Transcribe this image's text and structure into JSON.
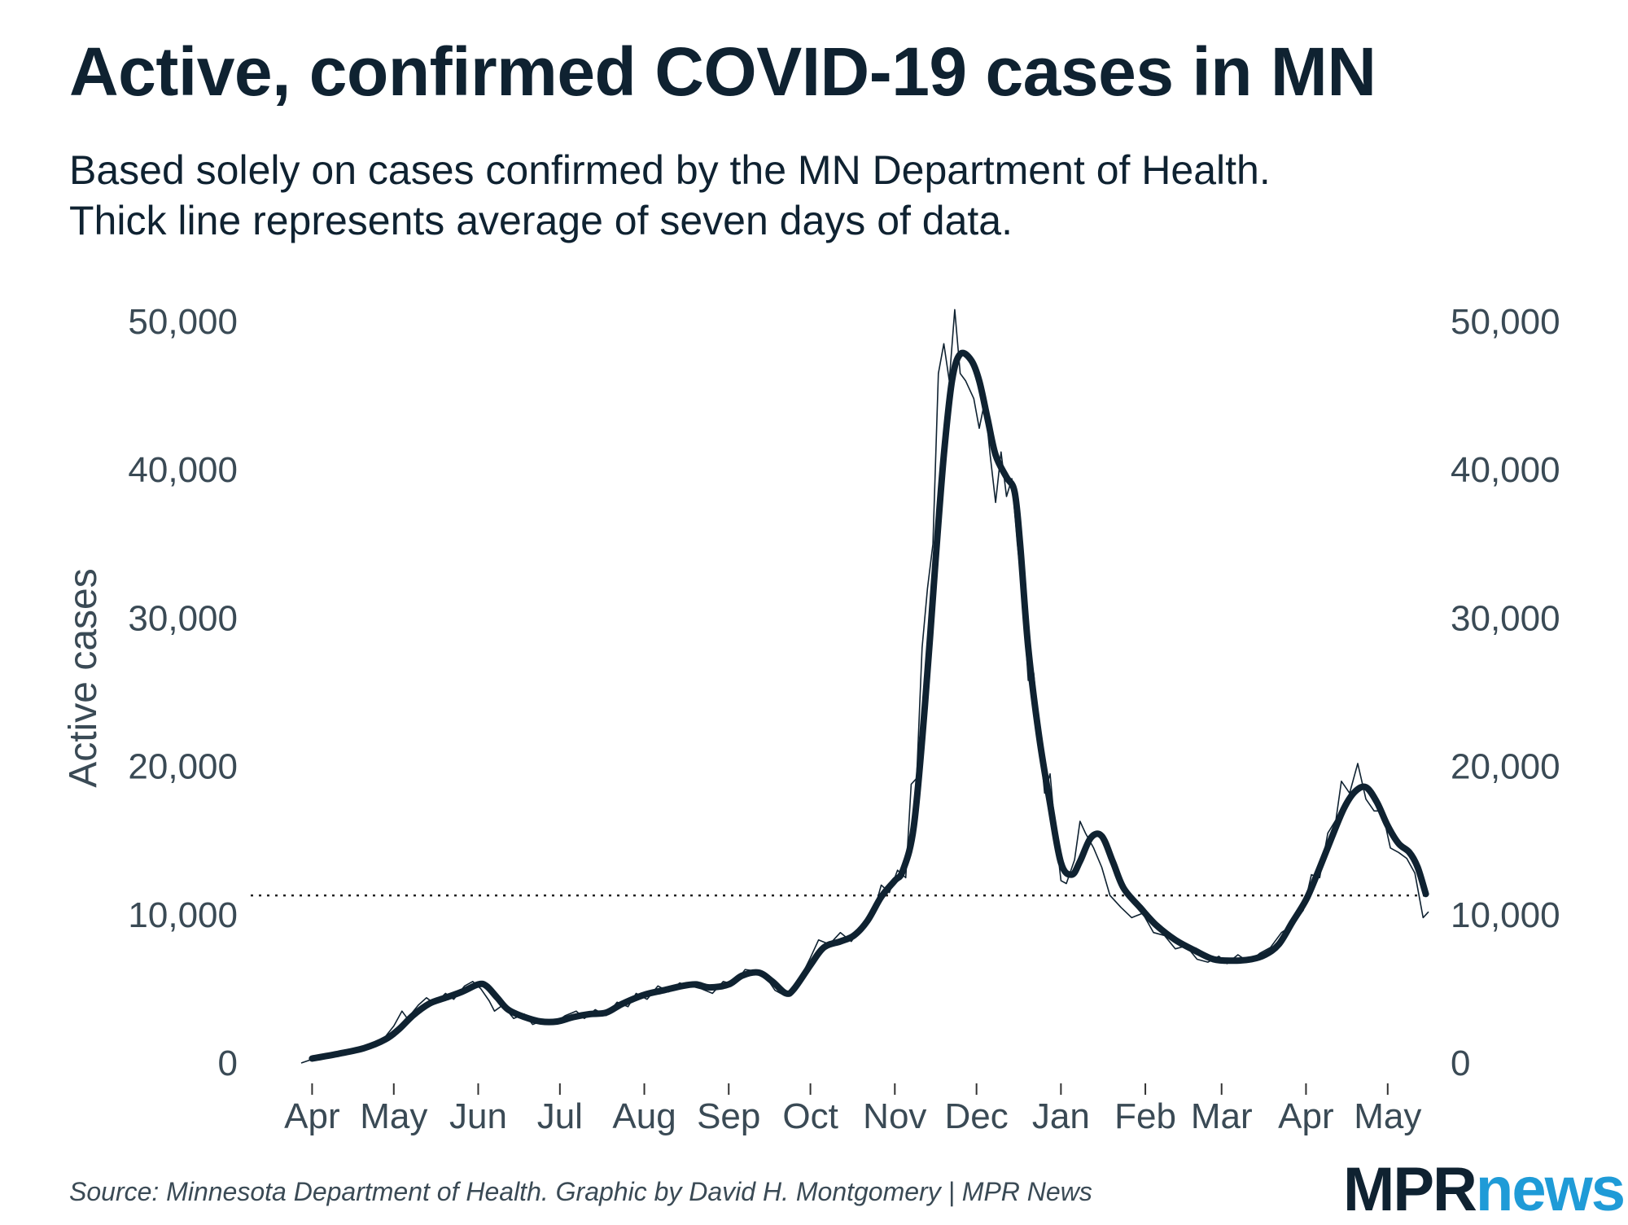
{
  "chart_data": {
    "type": "line",
    "title": "Active, confirmed COVID-19 cases in MN",
    "subtitle": [
      "Based solely on cases confirmed by the MN Department of Health.",
      "Thick line represents average of seven days of data."
    ],
    "ylabel": "Active cases",
    "xlabel": "",
    "ylim": [
      0,
      50000
    ],
    "yticks": [
      0,
      10000,
      20000,
      30000,
      40000,
      50000
    ],
    "ytick_labels": [
      "0",
      "10,000",
      "20,000",
      "30,000",
      "40,000",
      "50,000"
    ],
    "x_tick_labels": [
      "Apr",
      "May",
      "Jun",
      "Jul",
      "Aug",
      "Sep",
      "Oct",
      "Nov",
      "Dec",
      "Jan",
      "Feb",
      "Mar",
      "Apr",
      "May"
    ],
    "x_tick_dates": [
      "2020-04-01",
      "2020-05-01",
      "2020-06-01",
      "2020-07-01",
      "2020-08-01",
      "2020-09-01",
      "2020-10-01",
      "2020-11-01",
      "2020-12-01",
      "2021-01-01",
      "2021-02-01",
      "2021-03-01",
      "2021-04-01",
      "2021-05-01"
    ],
    "xlim": [
      "2020-03-25",
      "2021-05-19"
    ],
    "reference_line": {
      "value": 11300,
      "style": "dotted"
    },
    "grid": false,
    "legend": "none",
    "colors": {
      "series": "#0f2231",
      "reference": "#222222"
    },
    "series": [
      {
        "style": "thick",
        "points": [
          [
            "2020-04-01",
            300
          ],
          [
            "2020-04-10",
            600
          ],
          [
            "2020-04-20",
            1000
          ],
          [
            "2020-04-28",
            1600
          ],
          [
            "2020-05-03",
            2300
          ],
          [
            "2020-05-08",
            3200
          ],
          [
            "2020-05-14",
            4000
          ],
          [
            "2020-05-20",
            4400
          ],
          [
            "2020-05-26",
            4800
          ],
          [
            "2020-06-01",
            5300
          ],
          [
            "2020-06-04",
            5200
          ],
          [
            "2020-06-08",
            4400
          ],
          [
            "2020-06-12",
            3600
          ],
          [
            "2020-06-18",
            3100
          ],
          [
            "2020-06-24",
            2800
          ],
          [
            "2020-06-30",
            2800
          ],
          [
            "2020-07-06",
            3100
          ],
          [
            "2020-07-12",
            3300
          ],
          [
            "2020-07-18",
            3400
          ],
          [
            "2020-07-24",
            4000
          ],
          [
            "2020-08-01",
            4600
          ],
          [
            "2020-08-08",
            4900
          ],
          [
            "2020-08-15",
            5200
          ],
          [
            "2020-08-20",
            5300
          ],
          [
            "2020-08-25",
            5100
          ],
          [
            "2020-09-01",
            5300
          ],
          [
            "2020-09-06",
            5900
          ],
          [
            "2020-09-12",
            6100
          ],
          [
            "2020-09-17",
            5500
          ],
          [
            "2020-09-22",
            4700
          ],
          [
            "2020-09-25",
            5000
          ],
          [
            "2020-10-01",
            6600
          ],
          [
            "2020-10-06",
            7800
          ],
          [
            "2020-10-12",
            8200
          ],
          [
            "2020-10-17",
            8600
          ],
          [
            "2020-10-22",
            9600
          ],
          [
            "2020-10-27",
            11200
          ],
          [
            "2020-11-01",
            12300
          ],
          [
            "2020-11-04",
            13000
          ],
          [
            "2020-11-08",
            16000
          ],
          [
            "2020-11-12",
            24000
          ],
          [
            "2020-11-16",
            34000
          ],
          [
            "2020-11-19",
            41000
          ],
          [
            "2020-11-22",
            46000
          ],
          [
            "2020-11-25",
            47800
          ],
          [
            "2020-11-29",
            47400
          ],
          [
            "2020-12-02",
            46000
          ],
          [
            "2020-12-05",
            43500
          ],
          [
            "2020-12-08",
            41000
          ],
          [
            "2020-12-12",
            39500
          ],
          [
            "2020-12-15",
            38500
          ],
          [
            "2020-12-17",
            35000
          ],
          [
            "2020-12-20",
            28000
          ],
          [
            "2020-12-24",
            22000
          ],
          [
            "2020-12-28",
            17500
          ],
          [
            "2021-01-01",
            13500
          ],
          [
            "2021-01-05",
            12700
          ],
          [
            "2021-01-08",
            13600
          ],
          [
            "2021-01-12",
            15200
          ],
          [
            "2021-01-16",
            15300
          ],
          [
            "2021-01-20",
            13600
          ],
          [
            "2021-01-24",
            11800
          ],
          [
            "2021-01-30",
            10500
          ],
          [
            "2021-02-05",
            9300
          ],
          [
            "2021-02-12",
            8300
          ],
          [
            "2021-02-19",
            7600
          ],
          [
            "2021-02-26",
            7000
          ],
          [
            "2021-03-05",
            6900
          ],
          [
            "2021-03-12",
            7000
          ],
          [
            "2021-03-17",
            7300
          ],
          [
            "2021-03-22",
            8000
          ],
          [
            "2021-03-27",
            9500
          ],
          [
            "2021-04-01",
            11000
          ],
          [
            "2021-04-05",
            12700
          ],
          [
            "2021-04-10",
            15000
          ],
          [
            "2021-04-15",
            17200
          ],
          [
            "2021-04-19",
            18300
          ],
          [
            "2021-04-23",
            18600
          ],
          [
            "2021-04-27",
            17600
          ],
          [
            "2021-05-01",
            16000
          ],
          [
            "2021-05-05",
            14800
          ],
          [
            "2021-05-09",
            14200
          ],
          [
            "2021-05-12",
            13200
          ],
          [
            "2021-05-15",
            11400
          ]
        ]
      },
      {
        "style": "thin",
        "points": [
          [
            "2020-03-28",
            0
          ],
          [
            "2020-04-01",
            250
          ],
          [
            "2020-04-06",
            450
          ],
          [
            "2020-04-12",
            700
          ],
          [
            "2020-04-18",
            900
          ],
          [
            "2020-04-24",
            1300
          ],
          [
            "2020-04-28",
            1800
          ],
          [
            "2020-05-01",
            2500
          ],
          [
            "2020-05-04",
            3500
          ],
          [
            "2020-05-06",
            3000
          ],
          [
            "2020-05-10",
            3900
          ],
          [
            "2020-05-13",
            4400
          ],
          [
            "2020-05-16",
            4000
          ],
          [
            "2020-05-20",
            4700
          ],
          [
            "2020-05-23",
            4300
          ],
          [
            "2020-05-27",
            5200
          ],
          [
            "2020-05-30",
            5500
          ],
          [
            "2020-06-02",
            5000
          ],
          [
            "2020-06-05",
            4200
          ],
          [
            "2020-06-07",
            3500
          ],
          [
            "2020-06-10",
            3900
          ],
          [
            "2020-06-14",
            3000
          ],
          [
            "2020-06-18",
            3300
          ],
          [
            "2020-06-21",
            2600
          ],
          [
            "2020-06-25",
            2900
          ],
          [
            "2020-06-29",
            2700
          ],
          [
            "2020-07-03",
            3200
          ],
          [
            "2020-07-07",
            3500
          ],
          [
            "2020-07-10",
            3000
          ],
          [
            "2020-07-14",
            3600
          ],
          [
            "2020-07-18",
            3200
          ],
          [
            "2020-07-22",
            4100
          ],
          [
            "2020-07-26",
            3800
          ],
          [
            "2020-07-29",
            4700
          ],
          [
            "2020-08-02",
            4300
          ],
          [
            "2020-08-06",
            5200
          ],
          [
            "2020-08-10",
            4800
          ],
          [
            "2020-08-14",
            5400
          ],
          [
            "2020-08-18",
            5200
          ],
          [
            "2020-08-22",
            5000
          ],
          [
            "2020-08-26",
            4700
          ],
          [
            "2020-08-30",
            5500
          ],
          [
            "2020-09-03",
            5300
          ],
          [
            "2020-09-07",
            6300
          ],
          [
            "2020-09-11",
            6200
          ],
          [
            "2020-09-15",
            5700
          ],
          [
            "2020-09-18",
            4900
          ],
          [
            "2020-09-21",
            4600
          ],
          [
            "2020-09-24",
            4800
          ],
          [
            "2020-09-28",
            6000
          ],
          [
            "2020-10-01",
            7100
          ],
          [
            "2020-10-04",
            8300
          ],
          [
            "2020-10-08",
            8000
          ],
          [
            "2020-10-12",
            8800
          ],
          [
            "2020-10-16",
            8200
          ],
          [
            "2020-10-20",
            9200
          ],
          [
            "2020-10-24",
            10000
          ],
          [
            "2020-10-27",
            12000
          ],
          [
            "2020-10-30",
            11500
          ],
          [
            "2020-11-02",
            13000
          ],
          [
            "2020-11-05",
            12500
          ],
          [
            "2020-11-07",
            18800
          ],
          [
            "2020-11-09",
            19200
          ],
          [
            "2020-11-11",
            28000
          ],
          [
            "2020-11-13",
            32000
          ],
          [
            "2020-11-15",
            35000
          ],
          [
            "2020-11-17",
            46500
          ],
          [
            "2020-11-19",
            48500
          ],
          [
            "2020-11-21",
            46000
          ],
          [
            "2020-11-23",
            50800
          ],
          [
            "2020-11-25",
            46500
          ],
          [
            "2020-11-27",
            46000
          ],
          [
            "2020-11-30",
            44800
          ],
          [
            "2020-12-02",
            42800
          ],
          [
            "2020-12-04",
            44600
          ],
          [
            "2020-12-06",
            41000
          ],
          [
            "2020-12-08",
            37800
          ],
          [
            "2020-12-10",
            41200
          ],
          [
            "2020-12-12",
            38200
          ],
          [
            "2020-12-14",
            39400
          ],
          [
            "2020-12-16",
            35000
          ],
          [
            "2020-12-18",
            31500
          ],
          [
            "2020-12-20",
            25800
          ],
          [
            "2020-12-22",
            26300
          ],
          [
            "2020-12-24",
            22000
          ],
          [
            "2020-12-26",
            18200
          ],
          [
            "2020-12-28",
            19500
          ],
          [
            "2020-12-30",
            15500
          ],
          [
            "2021-01-01",
            12300
          ],
          [
            "2021-01-03",
            12100
          ],
          [
            "2021-01-06",
            13700
          ],
          [
            "2021-01-08",
            16300
          ],
          [
            "2021-01-10",
            15500
          ],
          [
            "2021-01-13",
            14500
          ],
          [
            "2021-01-16",
            13200
          ],
          [
            "2021-01-19",
            11300
          ],
          [
            "2021-01-23",
            10500
          ],
          [
            "2021-01-27",
            9800
          ],
          [
            "2021-01-31",
            10100
          ],
          [
            "2021-02-04",
            8800
          ],
          [
            "2021-02-08",
            8600
          ],
          [
            "2021-02-12",
            7700
          ],
          [
            "2021-02-16",
            7900
          ],
          [
            "2021-02-20",
            7000
          ],
          [
            "2021-02-24",
            6800
          ],
          [
            "2021-02-28",
            7200
          ],
          [
            "2021-03-03",
            6700
          ],
          [
            "2021-03-07",
            7300
          ],
          [
            "2021-03-11",
            6800
          ],
          [
            "2021-03-15",
            7400
          ],
          [
            "2021-03-19",
            7800
          ],
          [
            "2021-03-23",
            8800
          ],
          [
            "2021-03-27",
            9300
          ],
          [
            "2021-03-31",
            10300
          ],
          [
            "2021-04-03",
            12700
          ],
          [
            "2021-04-06",
            12500
          ],
          [
            "2021-04-09",
            15500
          ],
          [
            "2021-04-12",
            16400
          ],
          [
            "2021-04-14",
            19000
          ],
          [
            "2021-04-17",
            18200
          ],
          [
            "2021-04-20",
            20200
          ],
          [
            "2021-04-23",
            17800
          ],
          [
            "2021-04-26",
            17000
          ],
          [
            "2021-04-29",
            17000
          ],
          [
            "2021-05-02",
            14500
          ],
          [
            "2021-05-05",
            14200
          ],
          [
            "2021-05-08",
            13800
          ],
          [
            "2021-05-11",
            12800
          ],
          [
            "2021-05-14",
            9800
          ],
          [
            "2021-05-16",
            10200
          ]
        ]
      }
    ]
  },
  "footer": {
    "source": "Source: Minnesota Department of Health. Graphic by David H. Montgomery | MPR News",
    "logo_part1": "MPR",
    "logo_part2": "news"
  }
}
